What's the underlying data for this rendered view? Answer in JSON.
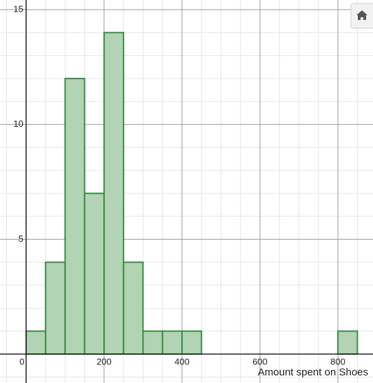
{
  "chart_data": {
    "type": "histogram",
    "x_label": "Amount spent on Shoes",
    "bins": [
      0,
      50,
      100,
      150,
      200,
      250,
      300,
      350,
      400,
      450,
      500,
      550,
      600,
      650,
      700,
      750,
      800,
      850
    ],
    "values": [
      1,
      4,
      12,
      7,
      14,
      4,
      1,
      1,
      1,
      0,
      0,
      0,
      0,
      0,
      0,
      0,
      1
    ],
    "color": "#b2d3b4",
    "edge_color": "#3a8a44",
    "xlim": [
      -67,
      890
    ],
    "ylim": [
      -1.26,
      15.42
    ],
    "xticks": [
      0,
      200,
      400,
      600,
      800
    ],
    "yticks": [
      5,
      10,
      15
    ],
    "minor_xticks": [
      -50,
      50,
      100,
      150,
      250,
      300,
      350,
      450,
      500,
      550,
      650,
      700,
      750,
      850
    ],
    "minor_yticks": [
      -1,
      1,
      2,
      3,
      4,
      6,
      7,
      8,
      9,
      11,
      12,
      13,
      14
    ],
    "grid": true
  }
}
